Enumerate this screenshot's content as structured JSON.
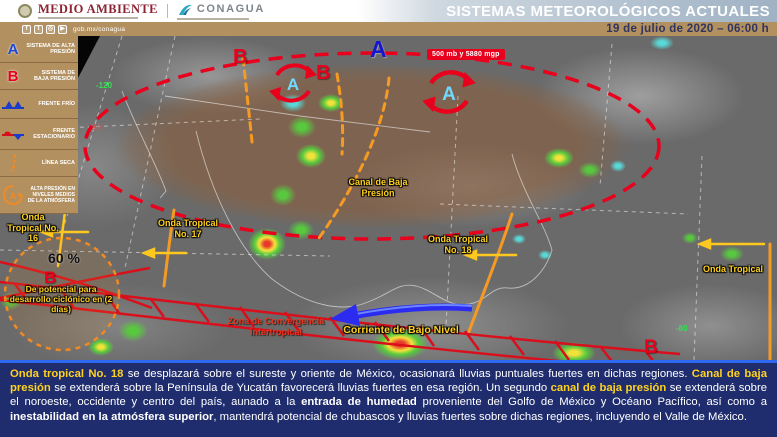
{
  "header": {
    "brand_medio_ambiente": "MEDIO AMBIENTE",
    "brand_conagua": "CONAGUA",
    "title": "SISTEMAS METEOROLÓGICOS ACTUALES",
    "datetime": "19 de julio de 2020 – 06:00 h",
    "social_url": "gob.mx/conagua",
    "social_icons": [
      "facebook-icon",
      "twitter-icon",
      "instagram-icon",
      "youtube-icon"
    ]
  },
  "legend": {
    "items": [
      {
        "symbol": "A",
        "label": "SISTEMA DE ALTA PRESIÓN"
      },
      {
        "symbol": "B",
        "label": "SISTEMA DE BAJA PRESIÓN"
      },
      {
        "symbol": "cold-front",
        "label": "FRENTE FRÍO"
      },
      {
        "symbol": "stationary-front",
        "label": "FRENTE ESTACIONARIO"
      },
      {
        "symbol": "dry-line",
        "label": "LÍNEA SECA"
      },
      {
        "symbol": "mid-level-high",
        "label": "ALTA PRESIÓN EN NIVELES MEDIOS DE LA ATMÓSFERA"
      }
    ]
  },
  "map": {
    "pressure_label": "500 mb y 5880 mgp",
    "canal_label": "Canal de Baja Presión",
    "onda16_label": "Onda Tropical No. 16",
    "onda17_label": "Onda Tropical No. 17",
    "onda18_label": "Onda Tropical No. 18",
    "onda_right_label": "Onda Tropical",
    "itcz_label": "Zona de Convergencia Intertropical",
    "corriente_label": "Corriente de Bajo Nivel",
    "potential_percent": "60 %",
    "potential_caption": "De potencial para desarrollo ciclónico en (2 días)",
    "letter_high": "A",
    "letter_low": "B",
    "graticule": [
      {
        "value": "-120",
        "color": "green"
      },
      {
        "value": "30",
        "color": "red"
      },
      {
        "value": "-80",
        "color": "green"
      }
    ]
  },
  "summary": {
    "segments": [
      {
        "t": "Onda tropical No. 18",
        "hl": "yellow"
      },
      {
        "t": " se desplazará sobre el sureste y oriente de México, ocasionará lluvias puntuales fuertes en dichas regiones. ",
        "hl": "none"
      },
      {
        "t": "Canal de baja presión",
        "hl": "yellow"
      },
      {
        "t": " se extenderá sobre la Península de Yucatán favorecerá lluvias fuertes en esa región. Un segundo ",
        "hl": "none"
      },
      {
        "t": "canal de baja presión",
        "hl": "yellow"
      },
      {
        "t": " se extenderá sobre el noroeste, occidente y centro del país, aunado a la ",
        "hl": "none"
      },
      {
        "t": "entrada de humedad",
        "hl": "bold"
      },
      {
        "t": " proveniente del Golfo de México y Océano Pacífico, así como a ",
        "hl": "none"
      },
      {
        "t": "inestabilidad en la atmósfera superior",
        "hl": "bold"
      },
      {
        "t": ", mantendrá potencial de chubascos y lluvias fuertes sobre dichas regiones, incluyendo el Valle de México.",
        "hl": "none"
      }
    ]
  },
  "colors": {
    "gold_bar": "#b3905f",
    "maroon_brand": "#8c2332",
    "annotation_red": "#e8001c",
    "annotation_orange": "#f59a23",
    "annotation_yellow": "#ffd21f",
    "graticule_green": "#35e055",
    "summary_blue": "#1f2d6e",
    "date_navy": "#2f3560"
  }
}
